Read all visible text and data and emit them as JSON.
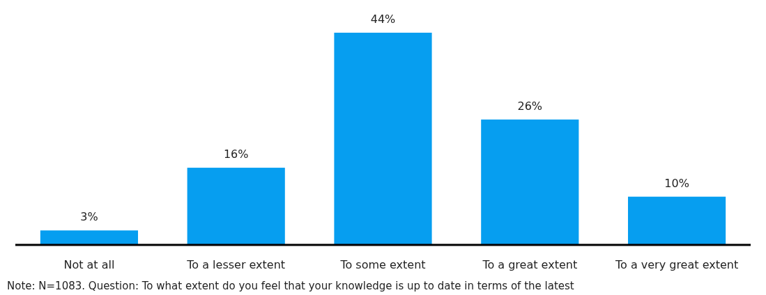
{
  "chart_data": {
    "type": "bar",
    "categories": [
      "Not at all",
      "To a lesser extent",
      "To some extent",
      "To a great extent",
      "To a very great extent"
    ],
    "values": [
      3,
      16,
      44,
      26,
      10
    ],
    "value_labels": [
      "3%",
      "16%",
      "44%",
      "26%",
      "10%"
    ],
    "color": "#069ef0",
    "annotations": [
      "Note: N=1083. Question: To what extent do you feel that your knowledge is up to date in terms of the latest"
    ]
  }
}
